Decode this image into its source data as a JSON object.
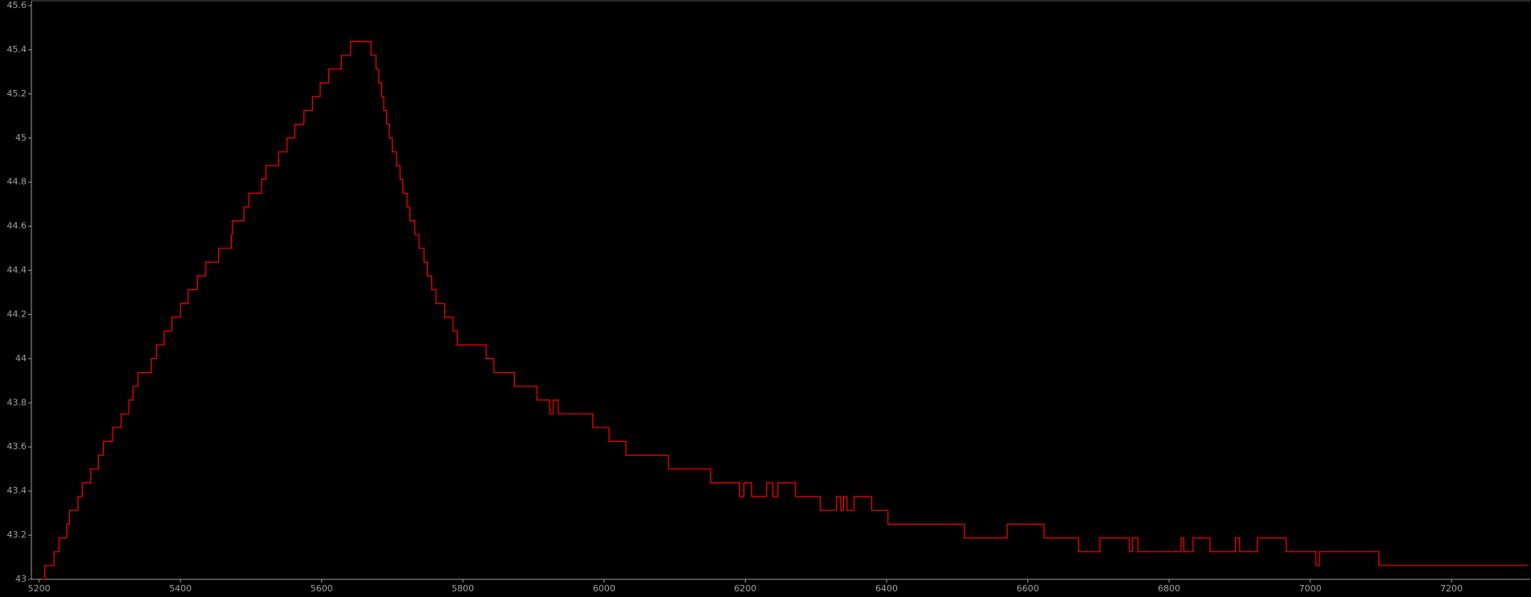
{
  "chart_data": {
    "type": "line",
    "step": "post",
    "color": "#ff0000",
    "background": "#000000",
    "axis_color": "#a0a0a0",
    "xlim": [
      5189,
      7308
    ],
    "ylim": [
      43,
      45.6
    ],
    "xticks": [
      5200,
      5400,
      5600,
      5800,
      6000,
      6200,
      6400,
      6600,
      6800,
      7000,
      7200
    ],
    "yticks": [
      43,
      43.2,
      43.4,
      43.6,
      43.8,
      44,
      44.2,
      44.4,
      44.6,
      44.8,
      45,
      45.2,
      45.4,
      45.6
    ],
    "x": [
      5205,
      5208,
      5221,
      5228,
      5239,
      5243,
      5255,
      5261,
      5273,
      5284,
      5291,
      5304,
      5316,
      5327,
      5333,
      5340,
      5359,
      5366,
      5377,
      5388,
      5400,
      5411,
      5424,
      5436,
      5454,
      5472,
      5474,
      5490,
      5497,
      5515,
      5521,
      5539,
      5551,
      5562,
      5575,
      5587,
      5598,
      5610,
      5628,
      5641,
      5670,
      5677,
      5681,
      5685,
      5688,
      5692,
      5696,
      5700,
      5706,
      5711,
      5715,
      5721,
      5725,
      5732,
      5738,
      5745,
      5750,
      5756,
      5762,
      5774,
      5786,
      5792,
      5833,
      5844,
      5873,
      5905,
      5923,
      5928,
      5935,
      5984,
      6007,
      6031,
      6091,
      6151,
      6192,
      6198,
      6209,
      6230,
      6239,
      6246,
      6271,
      6306,
      6329,
      6335,
      6339,
      6344,
      6354,
      6379,
      6402,
      6510,
      6571,
      6623,
      6672,
      6702,
      6744,
      6748,
      6756,
      6817,
      6821,
      6834,
      6858,
      6894,
      6900,
      6925,
      6966,
      7008,
      7013,
      7097,
      7308
    ],
    "values": [
      43,
      43.0625,
      43.125,
      43.1875,
      43.25,
      43.3125,
      43.375,
      43.4375,
      43.5,
      43.5625,
      43.625,
      43.6875,
      43.75,
      43.8125,
      43.875,
      43.9375,
      44,
      44.0625,
      44.125,
      44.1875,
      44.25,
      44.3125,
      44.375,
      44.4375,
      44.5,
      44.5625,
      44.625,
      44.6875,
      44.75,
      44.8125,
      44.875,
      44.9375,
      45,
      45.0625,
      45.125,
      45.1875,
      45.25,
      45.3125,
      45.375,
      45.4375,
      45.375,
      45.3125,
      45.25,
      45.1875,
      45.125,
      45.0625,
      45,
      44.9375,
      44.875,
      44.8125,
      44.75,
      44.6875,
      44.625,
      44.5625,
      44.5,
      44.4375,
      44.375,
      44.3125,
      44.25,
      44.1875,
      44.125,
      44.0625,
      44,
      43.9375,
      43.875,
      43.8125,
      43.75,
      43.8125,
      43.75,
      43.6875,
      43.625,
      43.5625,
      43.5,
      43.4375,
      43.375,
      43.4375,
      43.375,
      43.4375,
      43.375,
      43.4375,
      43.375,
      43.3125,
      43.375,
      43.3125,
      43.375,
      43.3125,
      43.375,
      43.3125,
      43.25,
      43.1875,
      43.25,
      43.1875,
      43.125,
      43.1875,
      43.125,
      43.1875,
      43.125,
      43.1875,
      43.125,
      43.1875,
      43.125,
      43.1875,
      43.125,
      43.1875,
      43.125,
      43.0625,
      43.125,
      43.0625,
      43.0625
    ]
  }
}
